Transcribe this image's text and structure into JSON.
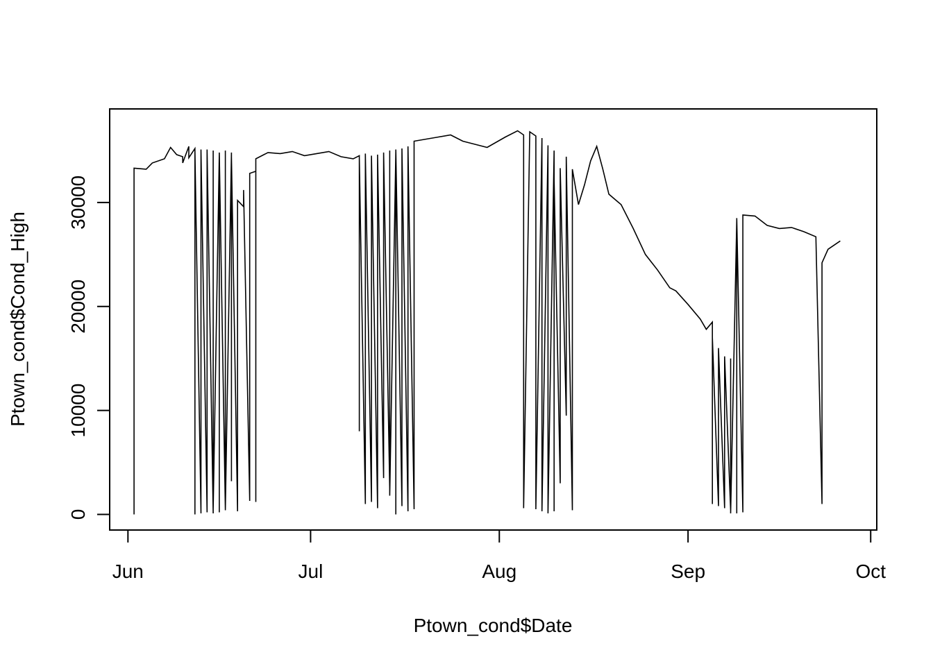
{
  "chart_data": {
    "type": "line",
    "title": "",
    "xlabel": "Ptown_cond$Date",
    "ylabel": "Ptown_cond$Cond_High",
    "x_ticks": [
      {
        "date": "2019-06-01",
        "label": "Jun"
      },
      {
        "date": "2019-07-01",
        "label": "Jul"
      },
      {
        "date": "2019-08-01",
        "label": "Aug"
      },
      {
        "date": "2019-09-01",
        "label": "Sep"
      },
      {
        "date": "2019-10-01",
        "label": "Oct"
      }
    ],
    "y_ticks": [
      0,
      10000,
      20000,
      30000
    ],
    "y_tick_labels": [
      "0",
      "10000",
      "20000",
      "30000"
    ],
    "xlim": [
      "2019-05-29",
      "2019-10-02"
    ],
    "ylim": [
      -1500,
      39000
    ],
    "grid": false,
    "line_color": "#000000",
    "series": [
      {
        "values": [
          [
            "2019-06-02",
            0
          ],
          [
            "2019-06-02",
            33300
          ],
          [
            "2019-06-04",
            33200
          ],
          [
            "2019-06-05",
            33800
          ],
          [
            "2019-06-07",
            34200
          ],
          [
            "2019-06-08",
            35300
          ],
          [
            "2019-06-09",
            34600
          ],
          [
            "2019-06-10",
            34400
          ],
          [
            "2019-06-10",
            33800
          ],
          [
            "2019-06-11",
            35400
          ],
          [
            "2019-06-11",
            34300
          ],
          [
            "2019-06-12",
            35200
          ],
          [
            "2019-06-12",
            0
          ],
          [
            "2019-06-12",
            35000
          ],
          [
            "2019-06-13",
            100
          ],
          [
            "2019-06-13",
            35000
          ],
          [
            "2019-06-13",
            300
          ],
          [
            "2019-06-13",
            35100
          ],
          [
            "2019-06-14",
            200
          ],
          [
            "2019-06-14",
            35100
          ],
          [
            "2019-06-15",
            100
          ],
          [
            "2019-06-15",
            35000
          ],
          [
            "2019-06-15",
            500
          ],
          [
            "2019-06-16",
            34700
          ],
          [
            "2019-06-16",
            200
          ],
          [
            "2019-06-16",
            34800
          ],
          [
            "2019-06-17",
            500
          ],
          [
            "2019-06-17",
            35000
          ],
          [
            "2019-06-17",
            400
          ],
          [
            "2019-06-18",
            34800
          ],
          [
            "2019-06-18",
            3200
          ],
          [
            "2019-06-18",
            34400
          ],
          [
            "2019-06-19",
            300
          ],
          [
            "2019-06-19",
            30200
          ],
          [
            "2019-06-20",
            29600
          ],
          [
            "2019-06-20",
            31200
          ],
          [
            "2019-06-21",
            1300
          ],
          [
            "2019-06-21",
            32800
          ],
          [
            "2019-06-22",
            33000
          ],
          [
            "2019-06-22",
            1200
          ],
          [
            "2019-06-22",
            34200
          ],
          [
            "2019-06-24",
            34800
          ],
          [
            "2019-06-26",
            34700
          ],
          [
            "2019-06-28",
            34900
          ],
          [
            "2019-06-30",
            34500
          ],
          [
            "2019-07-02",
            34700
          ],
          [
            "2019-07-04",
            34900
          ],
          [
            "2019-07-06",
            34400
          ],
          [
            "2019-07-08",
            34200
          ],
          [
            "2019-07-09",
            34500
          ],
          [
            "2019-07-09",
            8000
          ],
          [
            "2019-07-09",
            34300
          ],
          [
            "2019-07-10",
            1000
          ],
          [
            "2019-07-10",
            34700
          ],
          [
            "2019-07-11",
            1200
          ],
          [
            "2019-07-11",
            34500
          ],
          [
            "2019-07-12",
            600
          ],
          [
            "2019-07-12",
            34600
          ],
          [
            "2019-07-13",
            3500
          ],
          [
            "2019-07-13",
            34800
          ],
          [
            "2019-07-14",
            2500
          ],
          [
            "2019-07-14",
            35000
          ],
          [
            "2019-07-14",
            1800
          ],
          [
            "2019-07-15",
            34900
          ],
          [
            "2019-07-15",
            0
          ],
          [
            "2019-07-15",
            35100
          ],
          [
            "2019-07-16",
            800
          ],
          [
            "2019-07-16",
            35200
          ],
          [
            "2019-07-17",
            300
          ],
          [
            "2019-07-17",
            35400
          ],
          [
            "2019-07-18",
            500
          ],
          [
            "2019-07-18",
            35900
          ],
          [
            "2019-07-20",
            36100
          ],
          [
            "2019-07-22",
            36300
          ],
          [
            "2019-07-24",
            36500
          ],
          [
            "2019-07-26",
            35900
          ],
          [
            "2019-07-28",
            35600
          ],
          [
            "2019-07-30",
            35300
          ],
          [
            "2019-08-02",
            36300
          ],
          [
            "2019-08-04",
            36900
          ],
          [
            "2019-08-05",
            36500
          ],
          [
            "2019-08-05",
            600
          ],
          [
            "2019-08-06",
            36800
          ],
          [
            "2019-08-07",
            36400
          ],
          [
            "2019-08-07",
            500
          ],
          [
            "2019-08-08",
            36200
          ],
          [
            "2019-08-08",
            300
          ],
          [
            "2019-08-09",
            35500
          ],
          [
            "2019-08-09",
            100
          ],
          [
            "2019-08-10",
            35000
          ],
          [
            "2019-08-10",
            300
          ],
          [
            "2019-08-10",
            32200
          ],
          [
            "2019-08-11",
            3000
          ],
          [
            "2019-08-11",
            33300
          ],
          [
            "2019-08-12",
            9500
          ],
          [
            "2019-08-12",
            34400
          ],
          [
            "2019-08-13",
            400
          ],
          [
            "2019-08-13",
            33200
          ],
          [
            "2019-08-14",
            29800
          ],
          [
            "2019-08-15",
            31700
          ],
          [
            "2019-08-16",
            34000
          ],
          [
            "2019-08-17",
            35400
          ],
          [
            "2019-08-18",
            33200
          ],
          [
            "2019-08-19",
            30800
          ],
          [
            "2019-08-21",
            29800
          ],
          [
            "2019-08-23",
            27500
          ],
          [
            "2019-08-25",
            25000
          ],
          [
            "2019-08-27",
            23500
          ],
          [
            "2019-08-29",
            21800
          ],
          [
            "2019-08-30",
            21500
          ],
          [
            "2019-09-01",
            20200
          ],
          [
            "2019-09-03",
            18800
          ],
          [
            "2019-09-04",
            17800
          ],
          [
            "2019-09-05",
            18500
          ],
          [
            "2019-09-05",
            1000
          ],
          [
            "2019-09-05",
            17000
          ],
          [
            "2019-09-06",
            800
          ],
          [
            "2019-09-06",
            16000
          ],
          [
            "2019-09-07",
            600
          ],
          [
            "2019-09-07",
            15200
          ],
          [
            "2019-09-08",
            400
          ],
          [
            "2019-09-08",
            15000
          ],
          [
            "2019-09-08",
            100
          ],
          [
            "2019-09-09",
            28300
          ],
          [
            "2019-09-09",
            100
          ],
          [
            "2019-09-09",
            28500
          ],
          [
            "2019-09-10",
            200
          ],
          [
            "2019-09-10",
            28800
          ],
          [
            "2019-09-12",
            28700
          ],
          [
            "2019-09-14",
            27800
          ],
          [
            "2019-09-16",
            27500
          ],
          [
            "2019-09-18",
            27600
          ],
          [
            "2019-09-20",
            27200
          ],
          [
            "2019-09-22",
            26700
          ],
          [
            "2019-09-23",
            1000
          ],
          [
            "2019-09-23",
            24200
          ],
          [
            "2019-09-24",
            25500
          ],
          [
            "2019-09-26",
            26300
          ]
        ]
      }
    ]
  }
}
